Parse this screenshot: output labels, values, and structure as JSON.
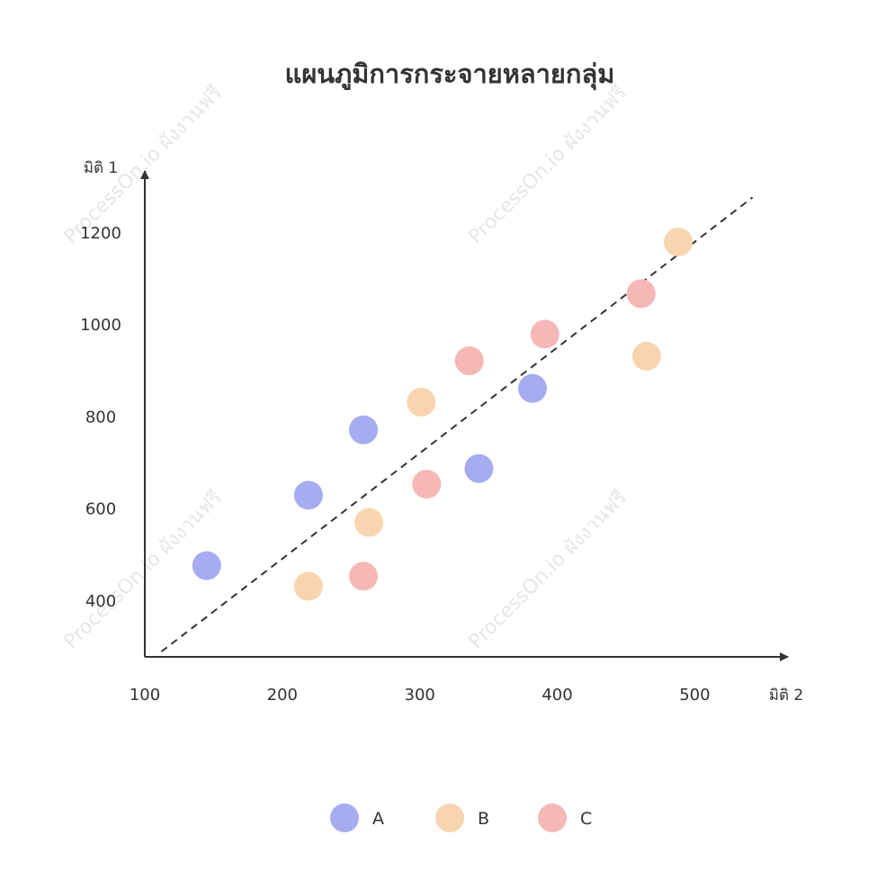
{
  "watermark_text": "ProcessOn.io ผังงานฟรี",
  "chart_data": {
    "type": "scatter",
    "title": "แผนภูมิการกระจายหลายกลุ่ม",
    "xlabel": "มิติ 2",
    "ylabel": "มิติ 1",
    "xlim": [
      100,
      560
    ],
    "ylim": [
      280,
      1310
    ],
    "x_ticks": [
      100,
      200,
      300,
      400,
      500
    ],
    "y_ticks": [
      400,
      600,
      800,
      1000,
      1200
    ],
    "grid": false,
    "legend_position": "bottom",
    "series": [
      {
        "name": "A",
        "color": "#a6acf0",
        "points": [
          [
            145,
            477
          ],
          [
            219,
            630
          ],
          [
            259,
            772
          ],
          [
            343,
            688
          ],
          [
            382,
            862
          ]
        ]
      },
      {
        "name": "B",
        "color": "#f8d5b0",
        "points": [
          [
            219,
            432
          ],
          [
            263,
            571
          ],
          [
            301,
            832
          ],
          [
            465,
            932
          ],
          [
            488,
            1180
          ]
        ]
      },
      {
        "name": "C",
        "color": "#f5b8b6",
        "points": [
          [
            259,
            454
          ],
          [
            305,
            654
          ],
          [
            336,
            922
          ],
          [
            391,
            980
          ],
          [
            461,
            1068
          ]
        ]
      }
    ],
    "trendline": {
      "style": "dashed",
      "from": [
        112,
        290
      ],
      "to": [
        542,
        1277
      ]
    }
  }
}
